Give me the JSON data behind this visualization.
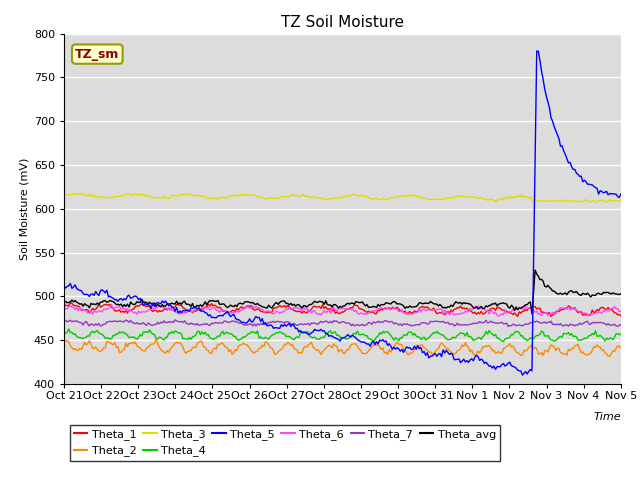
{
  "title": "TZ Soil Moisture",
  "ylabel": "Soil Moisture (mV)",
  "xlabel": "Time",
  "ylim": [
    400,
    800
  ],
  "background_color": "#dcdcdc",
  "plot_bg_color": "#dcdcdc",
  "legend_label": "TZ_sm",
  "legend_label_color": "#8B0000",
  "legend_box_facecolor": "#ffffcc",
  "legend_box_edgecolor": "#999900",
  "tick_labels": [
    "Oct 21",
    "Oct 22",
    "Oct 23",
    "Oct 24",
    "Oct 25",
    "Oct 26",
    "Oct 27",
    "Oct 28",
    "Oct 29",
    "Oct 30",
    "Oct 31",
    "Nov 1",
    "Nov 2",
    "Nov 3",
    "Nov 4",
    "Nov 5"
  ],
  "yticks": [
    400,
    450,
    500,
    550,
    600,
    650,
    700,
    750,
    800
  ],
  "series_colors": {
    "Theta_1": "#ff0000",
    "Theta_2": "#ff8800",
    "Theta_3": "#dddd00",
    "Theta_4": "#00cc00",
    "Theta_5": "#0000ff",
    "Theta_6": "#ff44ff",
    "Theta_7": "#9933cc",
    "Theta_avg": "#000000"
  },
  "legend_row1": [
    "Theta_1",
    "Theta_2",
    "Theta_3",
    "Theta_4",
    "Theta_5",
    "Theta_6"
  ],
  "legend_row2": [
    "Theta_7",
    "Theta_avg"
  ],
  "n_points": 352,
  "spike_idx": 295,
  "spike_peak": 780,
  "spike_pre": 415
}
